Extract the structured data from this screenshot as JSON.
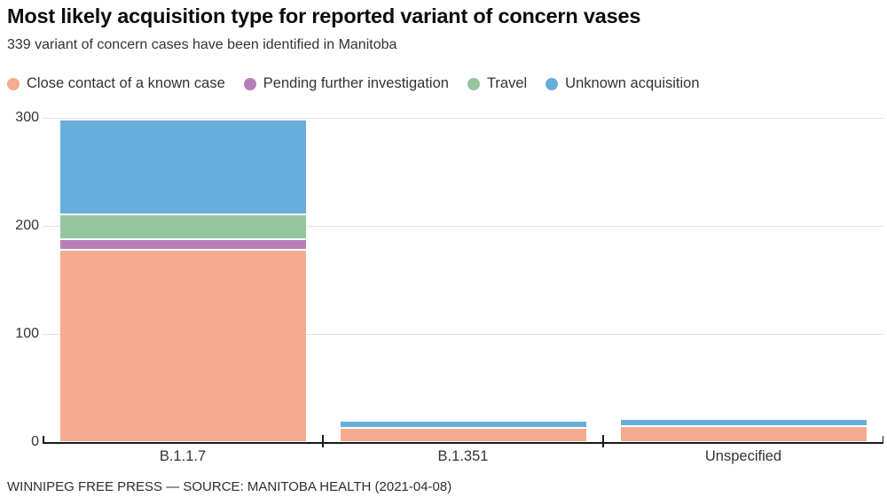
{
  "header": {
    "title": "Most likely acquisition type for reported variant of concern vases",
    "subtitle": "339 variant of concern cases have been identified in Manitoba"
  },
  "chart_data": {
    "type": "bar",
    "subtype": "stacked-vertical",
    "categories": [
      "B.1.1.7",
      "B.1.351",
      "Unspecified"
    ],
    "series": [
      {
        "name": "Close contact of a known case",
        "color": "#F5AB8D",
        "values": [
          178,
          13,
          15
        ]
      },
      {
        "name": "Pending further investigation",
        "color": "#B87EB8",
        "values": [
          10,
          0,
          0
        ]
      },
      {
        "name": "Travel",
        "color": "#97C69E",
        "values": [
          23,
          0,
          0
        ]
      },
      {
        "name": "Unknown acquisition",
        "color": "#67AEDC",
        "values": [
          87,
          7,
          6
        ]
      }
    ],
    "category_totals": [
      298,
      20,
      21
    ],
    "title": "Most likely acquisition type for reported variant of concern vases",
    "xlabel": "",
    "ylabel": "",
    "ylim": [
      0,
      300
    ],
    "yticks": [
      0,
      100,
      200,
      300
    ],
    "grid": "horizontal",
    "legend_position": "top",
    "colors": {
      "grid": "#e3e3e3",
      "axis": "#1a1a1a",
      "text": "#333333",
      "title": "#0c0c0c"
    }
  },
  "footer": {
    "source_line": "WINNIPEG FREE PRESS — SOURCE: MANITOBA HEALTH (2021-04-08)"
  }
}
